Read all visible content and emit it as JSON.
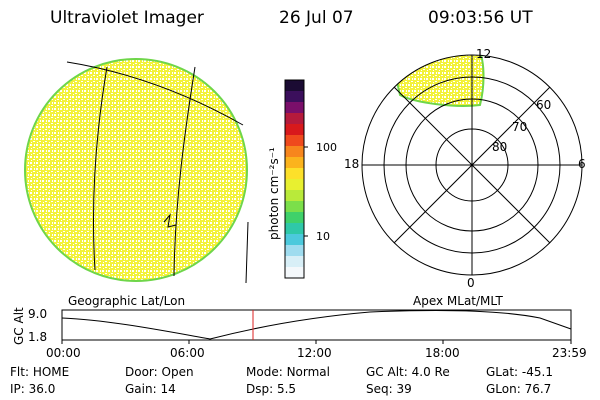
{
  "header": {
    "instrument": "Ultraviolet Imager",
    "date": "26 Jul 07",
    "time": "09:03:56 UT"
  },
  "colors": {
    "aurora_fill": "#f5f233",
    "aurora_edge": "#6fd64a",
    "line": "#000000",
    "marker": "#dd2222"
  },
  "colorbar": {
    "unit_label": "photon cm⁻²s⁻¹",
    "ticks": [
      "100",
      "10"
    ],
    "colors": [
      "#1b0b33",
      "#3b0f5c",
      "#7a0f6a",
      "#b51a3c",
      "#d8191c",
      "#ef4a1d",
      "#f7861d",
      "#fbb31d",
      "#fde02a",
      "#e8f030",
      "#b9ea3a",
      "#7bdf4a",
      "#3fd16a",
      "#2fc8a8",
      "#4cc9dc",
      "#9fdcef",
      "#d8eff7",
      "#f4f8fb"
    ]
  },
  "geo_panel": {
    "label": "Geographic Lat/Lon"
  },
  "polar_panel": {
    "label": "Apex MLat/MLT",
    "mlt_labels": {
      "top": "12",
      "right": "6",
      "left": "18",
      "bottom": "0"
    },
    "lat_labels": [
      "60",
      "70",
      "80"
    ]
  },
  "altitude_plot": {
    "ylabel": "GC Alt",
    "ytick_high": "9.0",
    "ytick_low": "1.8",
    "time_ticks": [
      "00:00",
      "06:00",
      "12:00",
      "18:00",
      "23:59"
    ]
  },
  "status": {
    "row1": [
      {
        "label": "Flt:",
        "value": "HOME"
      },
      {
        "label": "Door:",
        "value": "Open"
      },
      {
        "label": "Mode:",
        "value": "Normal"
      },
      {
        "label": "GC Alt:",
        "value": "4.0 Re"
      },
      {
        "label": "GLat:",
        "value": "-45.1"
      }
    ],
    "row2": [
      {
        "label": "IP:",
        "value": "36.0"
      },
      {
        "label": "Gain:",
        "value": "14"
      },
      {
        "label": "Dsp:",
        "value": "5.5"
      },
      {
        "label": "Seq:",
        "value": "39"
      },
      {
        "label": "GLon:",
        "value": "76.7"
      }
    ]
  }
}
